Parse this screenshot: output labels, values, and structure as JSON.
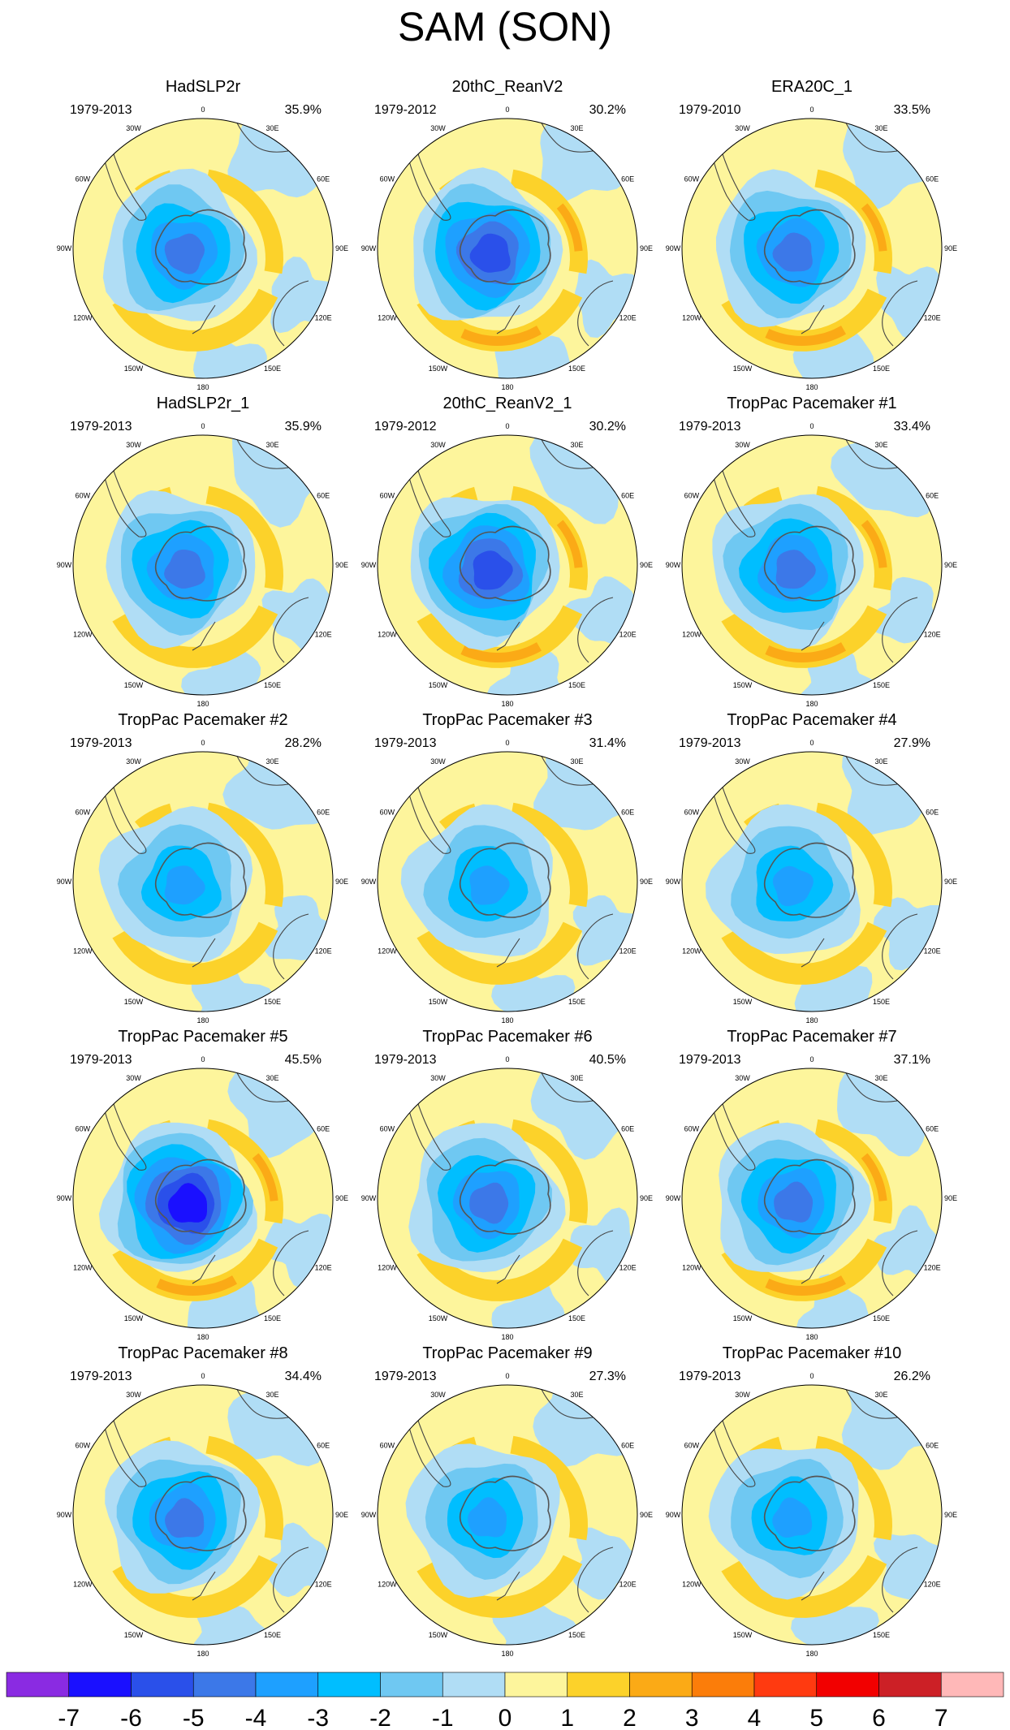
{
  "title": "SAM (SON)",
  "longitude_labels": [
    "0",
    "30E",
    "60E",
    "90E",
    "120E",
    "150E",
    "180",
    "150W",
    "120W",
    "90W",
    "60W",
    "30W"
  ],
  "colors": {
    "-7": "#8a2be2",
    "-6": "#1a10ff",
    "-5": "#2a50ea",
    "-4": "#3c78e8",
    "-3": "#1ea0ff",
    "-2": "#00beff",
    "-1": "#6fc8f2",
    "0": "#b0ddf5",
    "1": "#fdf59c",
    "2": "#fcd22a",
    "3": "#fbaa16",
    "4": "#fb7d0a",
    "5": "#ff3a10",
    "6": "#f20000",
    "7": "#cc2026",
    "8": "#ffb8b8"
  },
  "chart_data": {
    "type": "heatmap",
    "colorbar": {
      "labels": [
        "-7",
        "-6",
        "-5",
        "-4",
        "-3",
        "-2",
        "-1",
        "0",
        "1",
        "2",
        "3",
        "4",
        "5",
        "6",
        "7"
      ],
      "colors": [
        "#8a2be2",
        "#1a10ff",
        "#2a50ea",
        "#3c78e8",
        "#1ea0ff",
        "#00beff",
        "#6fc8f2",
        "#b0ddf5",
        "#fdf59c",
        "#fcd22a",
        "#fbaa16",
        "#fb7d0a",
        "#ff3a10",
        "#f20000",
        "#cc2026",
        "#ffb8b8"
      ]
    },
    "panels": [
      {
        "title": "HadSLP2r",
        "period": "1979-2013",
        "percent": "35.9%",
        "core": -4,
        "ring": 2
      },
      {
        "title": "20thC_ReanV2",
        "period": "1979-2012",
        "percent": "30.2%",
        "core": -5,
        "ring": 3
      },
      {
        "title": "ERA20C_1",
        "period": "1979-2010",
        "percent": "33.5%",
        "core": -4,
        "ring": 3
      },
      {
        "title": "HadSLP2r_1",
        "period": "1979-2013",
        "percent": "35.9%",
        "core": -4,
        "ring": 2
      },
      {
        "title": "20thC_ReanV2_1",
        "period": "1979-2012",
        "percent": "30.2%",
        "core": -5,
        "ring": 3
      },
      {
        "title": "TropPac Pacemaker #1",
        "period": "1979-2013",
        "percent": "33.4%",
        "core": -4,
        "ring": 3
      },
      {
        "title": "TropPac Pacemaker #2",
        "period": "1979-2013",
        "percent": "28.2%",
        "core": -3,
        "ring": 2
      },
      {
        "title": "TropPac Pacemaker #3",
        "period": "1979-2013",
        "percent": "31.4%",
        "core": -3,
        "ring": 2
      },
      {
        "title": "TropPac Pacemaker #4",
        "period": "1979-2013",
        "percent": "27.9%",
        "core": -3,
        "ring": 2
      },
      {
        "title": "TropPac Pacemaker #5",
        "period": "1979-2013",
        "percent": "45.5%",
        "core": -6,
        "ring": 3
      },
      {
        "title": "TropPac Pacemaker #6",
        "period": "1979-2013",
        "percent": "40.5%",
        "core": -4,
        "ring": 2
      },
      {
        "title": "TropPac Pacemaker #7",
        "period": "1979-2013",
        "percent": "37.1%",
        "core": -4,
        "ring": 3
      },
      {
        "title": "TropPac Pacemaker #8",
        "period": "1979-2013",
        "percent": "34.4%",
        "core": -4,
        "ring": 2
      },
      {
        "title": "TropPac Pacemaker #9",
        "period": "1979-2013",
        "percent": "27.3%",
        "core": -3,
        "ring": 2
      },
      {
        "title": "TropPac Pacemaker #10",
        "period": "1979-2013",
        "percent": "26.2%",
        "core": -3,
        "ring": 2
      }
    ]
  }
}
